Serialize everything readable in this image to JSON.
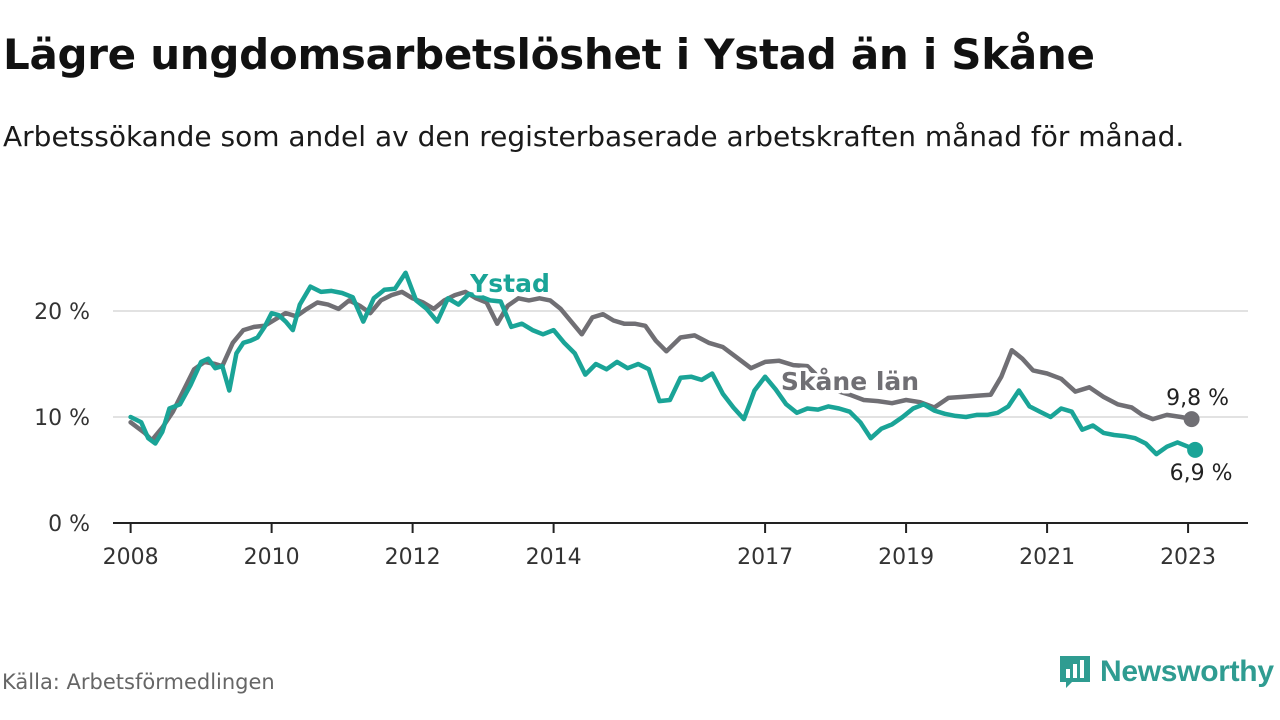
{
  "title": "Lägre ungdomsarbetslöshet i Ystad än i Skåne",
  "subtitle": "Arbetssökande som andel av den registerbaserade arbetskraften månad för månad.",
  "source": "Källa: Arbetsförmedlingen",
  "brand": "Newsworthy",
  "colors": {
    "ystad": "#1aa497",
    "skane": "#706f74",
    "brand": "#2f9c91",
    "grid": "#d9d9d9",
    "axis": "#222222"
  },
  "chart_data": {
    "type": "line",
    "x_unit": "year (decimal, monthly data)",
    "xlim": [
      2007.75,
      2023.85
    ],
    "ylim": [
      0,
      25
    ],
    "y_ticks": [
      0,
      10,
      20
    ],
    "y_tick_labels": [
      "0 %",
      "10 %",
      "20 %"
    ],
    "x_ticks": [
      2008,
      2010,
      2012,
      2014,
      2017,
      2019,
      2021,
      2023
    ],
    "x_tick_labels": [
      "2008",
      "2010",
      "2012",
      "2014",
      "2017",
      "2019",
      "2021",
      "2023"
    ],
    "grid": "horizontal",
    "series": [
      {
        "name": "Skåne län",
        "label": "Skåne län",
        "color_key": "skane",
        "end_label": "9,8 %",
        "x": [
          2008.0,
          2008.2,
          2008.3,
          2008.45,
          2008.6,
          2008.75,
          2008.9,
          2009.05,
          2009.2,
          2009.3,
          2009.45,
          2009.6,
          2009.75,
          2009.9,
          2010.05,
          2010.2,
          2010.35,
          2010.5,
          2010.65,
          2010.8,
          2010.95,
          2011.1,
          2011.25,
          2011.4,
          2011.55,
          2011.7,
          2011.85,
          2012.0,
          2012.15,
          2012.3,
          2012.45,
          2012.6,
          2012.75,
          2012.9,
          2013.05,
          2013.2,
          2013.35,
          2013.5,
          2013.65,
          2013.8,
          2013.95,
          2014.1,
          2014.25,
          2014.4,
          2014.55,
          2014.7,
          2014.85,
          2015.0,
          2015.15,
          2015.3,
          2015.45,
          2015.6,
          2015.8,
          2016.0,
          2016.2,
          2016.4,
          2016.6,
          2016.8,
          2017.0,
          2017.2,
          2017.4,
          2017.6,
          2017.8,
          2018.0,
          2018.2,
          2018.4,
          2018.6,
          2018.8,
          2019.0,
          2019.2,
          2019.4,
          2019.6,
          2019.8,
          2020.0,
          2020.2,
          2020.35,
          2020.5,
          2020.65,
          2020.8,
          2021.0,
          2021.2,
          2021.4,
          2021.6,
          2021.8,
          2022.0,
          2022.2,
          2022.35,
          2022.5,
          2022.7,
          2022.9,
          2023.05
        ],
        "values": [
          9.5,
          8.5,
          7.8,
          9.0,
          10.5,
          12.5,
          14.5,
          15.2,
          15.0,
          14.8,
          17.0,
          18.2,
          18.5,
          18.6,
          19.2,
          19.8,
          19.5,
          20.2,
          20.8,
          20.6,
          20.2,
          21.0,
          20.5,
          19.8,
          21.0,
          21.5,
          21.8,
          21.2,
          20.8,
          20.2,
          21.0,
          21.5,
          21.8,
          21.2,
          20.8,
          18.8,
          20.5,
          21.2,
          21.0,
          21.2,
          21.0,
          20.2,
          19.0,
          17.8,
          19.4,
          19.7,
          19.1,
          18.8,
          18.8,
          18.6,
          17.2,
          16.2,
          17.5,
          17.7,
          17.0,
          16.6,
          15.6,
          14.6,
          15.2,
          15.3,
          14.9,
          14.8,
          13.5,
          12.5,
          12.1,
          11.6,
          11.5,
          11.3,
          11.6,
          11.4,
          10.9,
          11.8,
          11.9,
          12.0,
          12.1,
          13.8,
          16.3,
          15.5,
          14.4,
          14.1,
          13.6,
          12.4,
          12.8,
          11.9,
          11.2,
          10.9,
          10.2,
          9.8,
          10.2,
          10.0,
          9.8
        ]
      },
      {
        "name": "Ystad",
        "label": "Ystad",
        "color_key": "ystad",
        "end_label": "6,9 %",
        "x": [
          2008.0,
          2008.15,
          2008.25,
          2008.35,
          2008.45,
          2008.55,
          2008.7,
          2008.85,
          2009.0,
          2009.1,
          2009.2,
          2009.3,
          2009.4,
          2009.5,
          2009.6,
          2009.7,
          2009.8,
          2009.9,
          2010.0,
          2010.1,
          2010.2,
          2010.3,
          2010.4,
          2010.55,
          2010.7,
          2010.85,
          2011.0,
          2011.15,
          2011.3,
          2011.45,
          2011.6,
          2011.75,
          2011.9,
          2012.05,
          2012.2,
          2012.35,
          2012.5,
          2012.65,
          2012.8,
          2012.95,
          2013.1,
          2013.25,
          2013.4,
          2013.55,
          2013.7,
          2013.85,
          2014.0,
          2014.15,
          2014.3,
          2014.45,
          2014.6,
          2014.75,
          2014.9,
          2015.05,
          2015.2,
          2015.35,
          2015.5,
          2015.65,
          2015.8,
          2015.95,
          2016.1,
          2016.25,
          2016.4,
          2016.55,
          2016.7,
          2016.85,
          2017.0,
          2017.15,
          2017.3,
          2017.45,
          2017.6,
          2017.75,
          2017.9,
          2018.05,
          2018.2,
          2018.35,
          2018.5,
          2018.65,
          2018.8,
          2018.95,
          2019.1,
          2019.25,
          2019.4,
          2019.55,
          2019.7,
          2019.85,
          2020.0,
          2020.15,
          2020.3,
          2020.45,
          2020.6,
          2020.75,
          2020.9,
          2021.05,
          2021.2,
          2021.35,
          2021.5,
          2021.65,
          2021.8,
          2021.95,
          2022.1,
          2022.25,
          2022.4,
          2022.55,
          2022.7,
          2022.85,
          2023.0,
          2023.1
        ],
        "values": [
          10.0,
          9.5,
          8.0,
          7.5,
          8.6,
          10.8,
          11.2,
          13.0,
          15.2,
          15.5,
          14.6,
          14.8,
          12.5,
          16.0,
          17.0,
          17.2,
          17.5,
          18.5,
          19.8,
          19.6,
          19.0,
          18.2,
          20.6,
          22.3,
          21.8,
          21.9,
          21.7,
          21.3,
          19.0,
          21.2,
          22.0,
          22.1,
          23.6,
          21.0,
          20.2,
          19.0,
          21.2,
          20.6,
          21.6,
          21.4,
          21.0,
          20.9,
          18.5,
          18.8,
          18.2,
          17.8,
          18.2,
          17.0,
          16.0,
          14.0,
          15.0,
          14.5,
          15.2,
          14.6,
          15.0,
          14.5,
          11.5,
          11.6,
          13.7,
          13.8,
          13.5,
          14.1,
          12.2,
          10.9,
          9.8,
          12.5,
          13.8,
          12.6,
          11.2,
          10.4,
          10.8,
          10.7,
          11.0,
          10.8,
          10.5,
          9.5,
          8.0,
          8.9,
          9.3,
          10.0,
          10.8,
          11.2,
          10.6,
          10.3,
          10.1,
          10.0,
          10.2,
          10.2,
          10.4,
          11.0,
          12.5,
          11.0,
          10.5,
          10.0,
          10.8,
          10.5,
          8.8,
          9.2,
          8.5,
          8.3,
          8.2,
          8.0,
          7.5,
          6.5,
          7.2,
          7.6,
          7.2,
          6.9
        ]
      }
    ]
  }
}
